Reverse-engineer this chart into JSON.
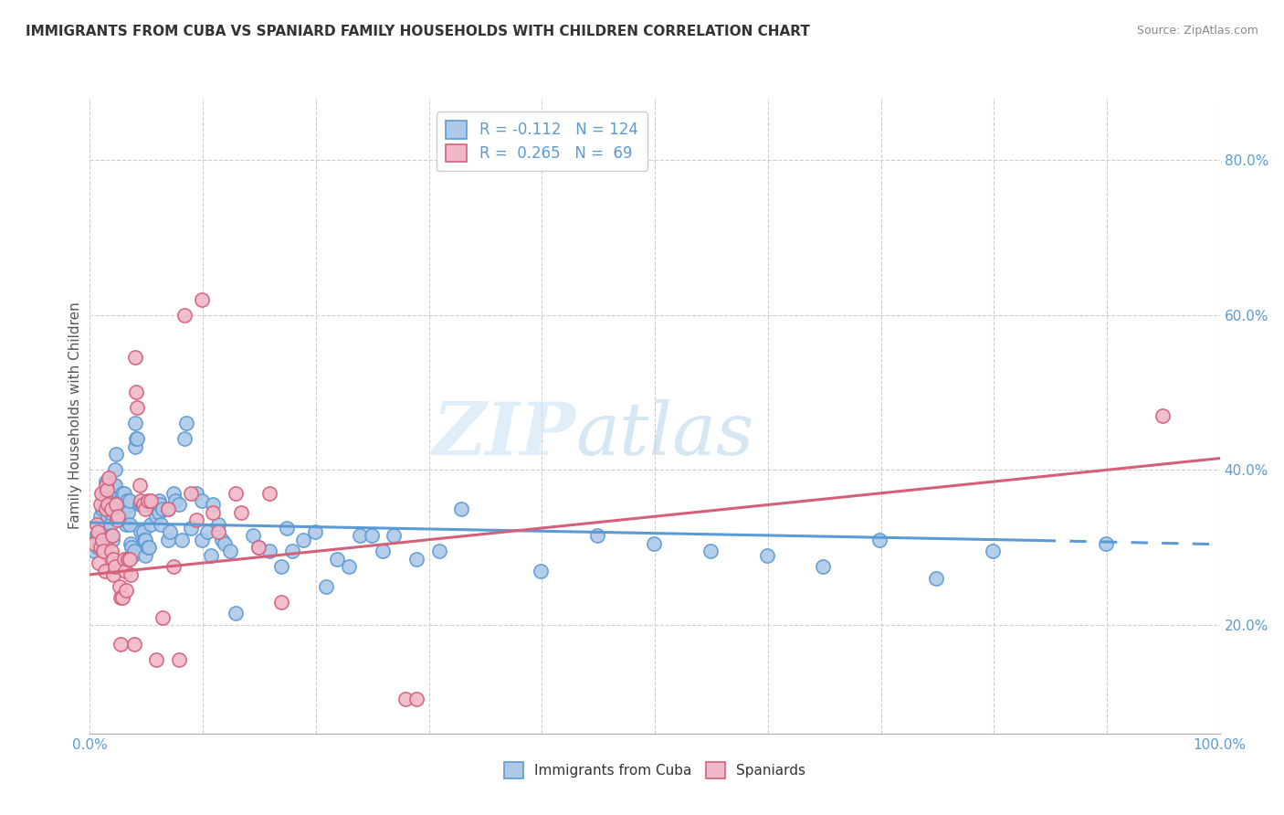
{
  "title": "IMMIGRANTS FROM CUBA VS SPANIARD FAMILY HOUSEHOLDS WITH CHILDREN CORRELATION CHART",
  "source": "Source: ZipAtlas.com",
  "ylabel": "Family Households with Children",
  "xlim": [
    0,
    1
  ],
  "ylim": [
    0.06,
    0.88
  ],
  "ytick_labels": [
    "20.0%",
    "40.0%",
    "60.0%",
    "80.0%"
  ],
  "ytick_vals": [
    0.2,
    0.4,
    0.6,
    0.8
  ],
  "legend_labels_bottom": [
    "Immigrants from Cuba",
    "Spaniards"
  ],
  "blue_color": "#5b9bd5",
  "pink_color": "#d4607a",
  "blue_fill": "#aec9e8",
  "pink_fill": "#f0b8c8",
  "watermark_zip": "ZIP",
  "watermark_atlas": "atlas",
  "blue_scatter": [
    [
      0.004,
      0.295
    ],
    [
      0.006,
      0.315
    ],
    [
      0.007,
      0.3
    ],
    [
      0.008,
      0.315
    ],
    [
      0.009,
      0.34
    ],
    [
      0.01,
      0.31
    ],
    [
      0.011,
      0.33
    ],
    [
      0.011,
      0.35
    ],
    [
      0.012,
      0.32
    ],
    [
      0.013,
      0.37
    ],
    [
      0.013,
      0.36
    ],
    [
      0.014,
      0.3
    ],
    [
      0.014,
      0.385
    ],
    [
      0.015,
      0.37
    ],
    [
      0.015,
      0.38
    ],
    [
      0.016,
      0.34
    ],
    [
      0.016,
      0.375
    ],
    [
      0.017,
      0.36
    ],
    [
      0.017,
      0.36
    ],
    [
      0.018,
      0.33
    ],
    [
      0.018,
      0.345
    ],
    [
      0.019,
      0.315
    ],
    [
      0.019,
      0.37
    ],
    [
      0.02,
      0.31
    ],
    [
      0.021,
      0.38
    ],
    [
      0.021,
      0.375
    ],
    [
      0.022,
      0.4
    ],
    [
      0.022,
      0.38
    ],
    [
      0.023,
      0.42
    ],
    [
      0.023,
      0.355
    ],
    [
      0.024,
      0.34
    ],
    [
      0.025,
      0.355
    ],
    [
      0.026,
      0.355
    ],
    [
      0.027,
      0.36
    ],
    [
      0.027,
      0.34
    ],
    [
      0.028,
      0.335
    ],
    [
      0.029,
      0.335
    ],
    [
      0.029,
      0.37
    ],
    [
      0.03,
      0.37
    ],
    [
      0.03,
      0.35
    ],
    [
      0.031,
      0.35
    ],
    [
      0.032,
      0.355
    ],
    [
      0.032,
      0.33
    ],
    [
      0.033,
      0.36
    ],
    [
      0.034,
      0.355
    ],
    [
      0.034,
      0.345
    ],
    [
      0.035,
      0.36
    ],
    [
      0.035,
      0.33
    ],
    [
      0.036,
      0.305
    ],
    [
      0.037,
      0.3
    ],
    [
      0.038,
      0.29
    ],
    [
      0.039,
      0.295
    ],
    [
      0.04,
      0.46
    ],
    [
      0.04,
      0.43
    ],
    [
      0.041,
      0.44
    ],
    [
      0.042,
      0.44
    ],
    [
      0.044,
      0.355
    ],
    [
      0.045,
      0.32
    ],
    [
      0.046,
      0.355
    ],
    [
      0.047,
      0.32
    ],
    [
      0.048,
      0.31
    ],
    [
      0.049,
      0.29
    ],
    [
      0.049,
      0.31
    ],
    [
      0.051,
      0.3
    ],
    [
      0.052,
      0.3
    ],
    [
      0.053,
      0.355
    ],
    [
      0.054,
      0.33
    ],
    [
      0.059,
      0.355
    ],
    [
      0.059,
      0.34
    ],
    [
      0.061,
      0.36
    ],
    [
      0.061,
      0.345
    ],
    [
      0.062,
      0.355
    ],
    [
      0.063,
      0.33
    ],
    [
      0.064,
      0.35
    ],
    [
      0.069,
      0.35
    ],
    [
      0.069,
      0.31
    ],
    [
      0.071,
      0.32
    ],
    [
      0.074,
      0.37
    ],
    [
      0.076,
      0.36
    ],
    [
      0.079,
      0.355
    ],
    [
      0.081,
      0.31
    ],
    [
      0.084,
      0.44
    ],
    [
      0.085,
      0.46
    ],
    [
      0.089,
      0.325
    ],
    [
      0.094,
      0.37
    ],
    [
      0.099,
      0.36
    ],
    [
      0.099,
      0.31
    ],
    [
      0.104,
      0.32
    ],
    [
      0.107,
      0.29
    ],
    [
      0.109,
      0.355
    ],
    [
      0.114,
      0.33
    ],
    [
      0.117,
      0.31
    ],
    [
      0.119,
      0.305
    ],
    [
      0.124,
      0.295
    ],
    [
      0.129,
      0.215
    ],
    [
      0.144,
      0.315
    ],
    [
      0.149,
      0.3
    ],
    [
      0.159,
      0.295
    ],
    [
      0.169,
      0.275
    ],
    [
      0.174,
      0.325
    ],
    [
      0.179,
      0.295
    ],
    [
      0.189,
      0.31
    ],
    [
      0.199,
      0.32
    ],
    [
      0.209,
      0.25
    ],
    [
      0.219,
      0.285
    ],
    [
      0.229,
      0.275
    ],
    [
      0.239,
      0.315
    ],
    [
      0.249,
      0.315
    ],
    [
      0.259,
      0.295
    ],
    [
      0.269,
      0.315
    ],
    [
      0.289,
      0.285
    ],
    [
      0.309,
      0.295
    ],
    [
      0.329,
      0.35
    ],
    [
      0.399,
      0.27
    ],
    [
      0.449,
      0.315
    ],
    [
      0.499,
      0.305
    ],
    [
      0.549,
      0.295
    ],
    [
      0.599,
      0.29
    ],
    [
      0.649,
      0.275
    ],
    [
      0.699,
      0.31
    ],
    [
      0.749,
      0.26
    ],
    [
      0.799,
      0.295
    ],
    [
      0.899,
      0.305
    ]
  ],
  "pink_scatter": [
    [
      0.004,
      0.305
    ],
    [
      0.006,
      0.33
    ],
    [
      0.007,
      0.32
    ],
    [
      0.008,
      0.28
    ],
    [
      0.009,
      0.355
    ],
    [
      0.009,
      0.3
    ],
    [
      0.01,
      0.37
    ],
    [
      0.011,
      0.31
    ],
    [
      0.012,
      0.295
    ],
    [
      0.013,
      0.27
    ],
    [
      0.014,
      0.38
    ],
    [
      0.014,
      0.35
    ],
    [
      0.015,
      0.375
    ],
    [
      0.016,
      0.355
    ],
    [
      0.017,
      0.39
    ],
    [
      0.019,
      0.35
    ],
    [
      0.019,
      0.295
    ],
    [
      0.02,
      0.315
    ],
    [
      0.021,
      0.285
    ],
    [
      0.021,
      0.265
    ],
    [
      0.022,
      0.275
    ],
    [
      0.023,
      0.355
    ],
    [
      0.024,
      0.335
    ],
    [
      0.025,
      0.34
    ],
    [
      0.026,
      0.25
    ],
    [
      0.027,
      0.235
    ],
    [
      0.027,
      0.175
    ],
    [
      0.029,
      0.235
    ],
    [
      0.03,
      0.285
    ],
    [
      0.031,
      0.27
    ],
    [
      0.032,
      0.245
    ],
    [
      0.034,
      0.285
    ],
    [
      0.035,
      0.285
    ],
    [
      0.036,
      0.265
    ],
    [
      0.039,
      0.175
    ],
    [
      0.04,
      0.545
    ],
    [
      0.041,
      0.5
    ],
    [
      0.042,
      0.48
    ],
    [
      0.044,
      0.38
    ],
    [
      0.045,
      0.36
    ],
    [
      0.047,
      0.355
    ],
    [
      0.049,
      0.35
    ],
    [
      0.051,
      0.36
    ],
    [
      0.054,
      0.36
    ],
    [
      0.059,
      0.155
    ],
    [
      0.064,
      0.21
    ],
    [
      0.069,
      0.35
    ],
    [
      0.074,
      0.275
    ],
    [
      0.079,
      0.155
    ],
    [
      0.084,
      0.6
    ],
    [
      0.089,
      0.37
    ],
    [
      0.094,
      0.335
    ],
    [
      0.099,
      0.62
    ],
    [
      0.109,
      0.345
    ],
    [
      0.114,
      0.32
    ],
    [
      0.129,
      0.37
    ],
    [
      0.134,
      0.345
    ],
    [
      0.149,
      0.3
    ],
    [
      0.159,
      0.37
    ],
    [
      0.169,
      0.23
    ],
    [
      0.279,
      0.105
    ],
    [
      0.289,
      0.105
    ],
    [
      0.949,
      0.47
    ]
  ],
  "blue_trend_solid": {
    "x_start": 0.0,
    "x_end": 0.84,
    "y_start": 0.332,
    "y_end": 0.309
  },
  "blue_trend_dashed": {
    "x_start": 0.84,
    "x_end": 1.0,
    "y_start": 0.309,
    "y_end": 0.304
  },
  "pink_trend": {
    "x_start": 0.0,
    "x_end": 1.0,
    "y_start": 0.265,
    "y_end": 0.415
  }
}
